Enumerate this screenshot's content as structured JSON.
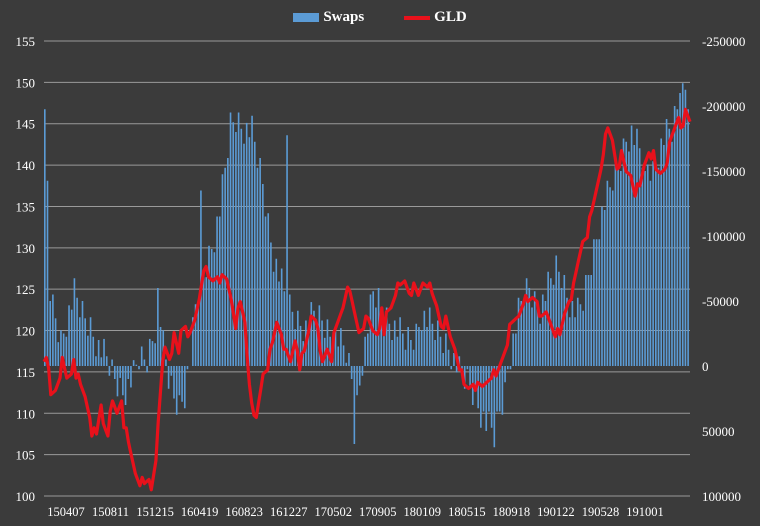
{
  "chart_data": {
    "type": "bar+line",
    "title": "",
    "legend": {
      "position": "top-center"
    },
    "series": [
      {
        "name": "Swaps",
        "type": "bar",
        "axis": "right",
        "color": "#5b9bd5",
        "anchors": [
          [
            0,
            -90000
          ],
          [
            1,
            -70000
          ],
          [
            3,
            -45000
          ],
          [
            6,
            -20000
          ],
          [
            8,
            -35000
          ],
          [
            11,
            -55000
          ],
          [
            14,
            -40000
          ],
          [
            17,
            -30000
          ],
          [
            20,
            -15000
          ],
          [
            23,
            -5000
          ],
          [
            26,
            10000
          ],
          [
            29,
            20000
          ],
          [
            31,
            15000
          ],
          [
            33,
            8000
          ],
          [
            35,
            -5000
          ],
          [
            38,
            -5000
          ],
          [
            41,
            -30000
          ],
          [
            42,
            -55000
          ],
          [
            44,
            -15000
          ],
          [
            46,
            10000
          ],
          [
            48,
            25000
          ],
          [
            50,
            30000
          ],
          [
            52,
            20000
          ],
          [
            54,
            -5000
          ],
          [
            56,
            -45000
          ],
          [
            58,
            -65000
          ],
          [
            61,
            -85000
          ],
          [
            63,
            -100000
          ],
          [
            65,
            -120000
          ],
          [
            67,
            -150000
          ],
          [
            69,
            -185000
          ],
          [
            71,
            -190000
          ],
          [
            73,
            -185000
          ],
          [
            75,
            -182000
          ],
          [
            77,
            -180000
          ],
          [
            79,
            -160000
          ],
          [
            81,
            -140000
          ],
          [
            83,
            -110000
          ],
          [
            85,
            -85000
          ],
          [
            87,
            -70000
          ],
          [
            89,
            -55000
          ],
          [
            91,
            -45000
          ],
          [
            94,
            -35000
          ],
          [
            97,
            -30000
          ],
          [
            100,
            -40000
          ],
          [
            103,
            -35000
          ],
          [
            106,
            -25000
          ],
          [
            109,
            -20000
          ],
          [
            112,
            -10000
          ],
          [
            114,
            10000
          ],
          [
            115,
            50000
          ],
          [
            116,
            30000
          ],
          [
            118,
            -5000
          ],
          [
            120,
            -30000
          ],
          [
            122,
            -55000
          ],
          [
            124,
            -50000
          ],
          [
            126,
            -40000
          ],
          [
            128,
            -35000
          ],
          [
            130,
            -30000
          ],
          [
            132,
            -25000
          ],
          [
            134,
            -20000
          ],
          [
            136,
            -20000
          ],
          [
            138,
            -25000
          ],
          [
            140,
            -40000
          ],
          [
            142,
            -35000
          ],
          [
            144,
            -30000
          ],
          [
            146,
            -25000
          ],
          [
            148,
            -20000
          ],
          [
            150,
            -15000
          ],
          [
            152,
            -5000
          ],
          [
            154,
            5000
          ],
          [
            156,
            10000
          ],
          [
            158,
            15000
          ],
          [
            160,
            25000
          ],
          [
            162,
            35000
          ],
          [
            164,
            45000
          ],
          [
            166,
            50000
          ],
          [
            167,
            55000
          ],
          [
            169,
            35000
          ],
          [
            171,
            20000
          ],
          [
            172,
            0
          ],
          [
            174,
            -20000
          ],
          [
            176,
            -40000
          ],
          [
            178,
            -55000
          ],
          [
            180,
            -60000
          ],
          [
            182,
            -50000
          ],
          [
            184,
            -45000
          ],
          [
            186,
            -55000
          ],
          [
            188,
            -65000
          ],
          [
            190,
            -75000
          ],
          [
            192,
            -70000
          ],
          [
            194,
            -55000
          ],
          [
            196,
            -45000
          ],
          [
            198,
            -40000
          ],
          [
            200,
            -50000
          ],
          [
            202,
            -70000
          ],
          [
            204,
            -90000
          ],
          [
            206,
            -110000
          ],
          [
            208,
            -125000
          ],
          [
            210,
            -135000
          ],
          [
            212,
            -150000
          ],
          [
            214,
            -160000
          ],
          [
            216,
            -175000
          ],
          [
            218,
            -180000
          ],
          [
            220,
            -170000
          ],
          [
            222,
            -160000
          ],
          [
            224,
            -155000
          ],
          [
            226,
            -150000
          ],
          [
            228,
            -165000
          ],
          [
            230,
            -175000
          ],
          [
            232,
            -180000
          ],
          [
            234,
            -190000
          ],
          [
            236,
            -205000
          ],
          [
            238,
            -215000
          ],
          [
            239,
            -210000
          ]
        ],
        "spikes": [
          [
            0,
            -185000
          ],
          [
            1,
            -140000
          ],
          [
            58,
            -125000
          ],
          [
            90,
            -185000
          ],
          [
            223,
            -140000
          ],
          [
            233,
            -180000
          ],
          [
            236,
            -220000
          ]
        ]
      },
      {
        "name": "GLD",
        "type": "line",
        "axis": "left",
        "color": "#e8111b",
        "anchors": [
          [
            0,
            117
          ],
          [
            2,
            115
          ],
          [
            3,
            112
          ],
          [
            5,
            113
          ],
          [
            8,
            116
          ],
          [
            10,
            114
          ],
          [
            12,
            115
          ],
          [
            13,
            117
          ],
          [
            14,
            115
          ],
          [
            16,
            113
          ],
          [
            18,
            112
          ],
          [
            20,
            110
          ],
          [
            21,
            108
          ],
          [
            23,
            107
          ],
          [
            24,
            109
          ],
          [
            25,
            111
          ],
          [
            26,
            109
          ],
          [
            28,
            108
          ],
          [
            30,
            111
          ],
          [
            32,
            110
          ],
          [
            34,
            112
          ],
          [
            35,
            109
          ],
          [
            37,
            106
          ],
          [
            39,
            104
          ],
          [
            40,
            103
          ],
          [
            42,
            102
          ],
          [
            44,
            101
          ],
          [
            46,
            102
          ],
          [
            47,
            101
          ],
          [
            48,
            103
          ],
          [
            49,
            105
          ],
          [
            50,
            108
          ],
          [
            51,
            112
          ],
          [
            52,
            116
          ],
          [
            53,
            118
          ],
          [
            55,
            117
          ],
          [
            57,
            119
          ],
          [
            59,
            117
          ],
          [
            60,
            120
          ],
          [
            62,
            121
          ],
          [
            64,
            119
          ],
          [
            66,
            121
          ],
          [
            68,
            124
          ],
          [
            70,
            128
          ],
          [
            72,
            126
          ],
          [
            74,
            126
          ],
          [
            76,
            127
          ],
          [
            78,
            126
          ],
          [
            80,
            126
          ],
          [
            82,
            124
          ],
          [
            84,
            121
          ],
          [
            86,
            123
          ],
          [
            88,
            121
          ],
          [
            89,
            117
          ],
          [
            90,
            114
          ],
          [
            91,
            112
          ],
          [
            92,
            109
          ],
          [
            93,
            109
          ],
          [
            94,
            111
          ],
          [
            95,
            113
          ],
          [
            96,
            115
          ],
          [
            98,
            116
          ],
          [
            100,
            118
          ],
          [
            102,
            121
          ],
          [
            104,
            120
          ],
          [
            106,
            117
          ],
          [
            108,
            116
          ],
          [
            110,
            119
          ],
          [
            111,
            118
          ],
          [
            112,
            116
          ],
          [
            114,
            117
          ],
          [
            116,
            120
          ],
          [
            117,
            122
          ],
          [
            119,
            122
          ],
          [
            121,
            117
          ],
          [
            122,
            116
          ],
          [
            124,
            118
          ],
          [
            126,
            117
          ],
          [
            127,
            119
          ],
          [
            129,
            121
          ],
          [
            131,
            123
          ],
          [
            133,
            126
          ],
          [
            134,
            124
          ],
          [
            136,
            122
          ],
          [
            138,
            120
          ],
          [
            140,
            121
          ],
          [
            142,
            121
          ],
          [
            144,
            120
          ],
          [
            146,
            120
          ],
          [
            148,
            122
          ],
          [
            149,
            119
          ],
          [
            150,
            122
          ],
          [
            152,
            123
          ],
          [
            154,
            125
          ],
          [
            156,
            125
          ],
          [
            158,
            126
          ],
          [
            160,
            125
          ],
          [
            162,
            125
          ],
          [
            164,
            124
          ],
          [
            166,
            126
          ],
          [
            168,
            126
          ],
          [
            170,
            124
          ],
          [
            172,
            123
          ],
          [
            174,
            121
          ],
          [
            176,
            121
          ],
          [
            178,
            119
          ],
          [
            180,
            118
          ],
          [
            182,
            116
          ],
          [
            184,
            113
          ],
          [
            186,
            113
          ],
          [
            188,
            114
          ],
          [
            190,
            113
          ],
          [
            192,
            113
          ],
          [
            194,
            114
          ],
          [
            196,
            115
          ],
          [
            198,
            114
          ],
          [
            200,
            116
          ],
          [
            202,
            118
          ],
          [
            204,
            120
          ],
          [
            206,
            121
          ],
          [
            208,
            122
          ],
          [
            210,
            124
          ],
          [
            212,
            123
          ],
          [
            214,
            124
          ],
          [
            216,
            124
          ],
          [
            218,
            121
          ],
          [
            220,
            122
          ],
          [
            222,
            121
          ],
          [
            224,
            120
          ],
          [
            226,
            119
          ],
          [
            228,
            122
          ],
          [
            230,
            124
          ],
          [
            232,
            125
          ],
          [
            234,
            128
          ],
          [
            236,
            131
          ],
          [
            238,
            132
          ],
          [
            240,
            134
          ],
          [
            242,
            137
          ],
          [
            244,
            140
          ],
          [
            245,
            142
          ],
          [
            247,
            144
          ],
          [
            249,
            143
          ],
          [
            251,
            140
          ],
          [
            253,
            141
          ],
          [
            255,
            139
          ],
          [
            257,
            139
          ],
          [
            259,
            137
          ],
          [
            261,
            137
          ],
          [
            263,
            140
          ],
          [
            265,
            142
          ],
          [
            267,
            141
          ],
          [
            268,
            139
          ],
          [
            270,
            139
          ],
          [
            272,
            140
          ],
          [
            274,
            142
          ],
          [
            276,
            144
          ],
          [
            278,
            146
          ],
          [
            279,
            145
          ],
          [
            281,
            146
          ],
          [
            283,
            145
          ]
        ]
      }
    ],
    "x_tick_labels": [
      "150407",
      "150811",
      "151215",
      "160419",
      "160823",
      "161227",
      "170502",
      "170905",
      "180109",
      "180515",
      "180918",
      "190122",
      "190528",
      "191001"
    ],
    "left_axis": {
      "min": 100,
      "max": 155,
      "step": 5,
      "tick_labels": [
        "100",
        "105",
        "110",
        "115",
        "120",
        "125",
        "130",
        "135",
        "140",
        "145",
        "150",
        "155"
      ]
    },
    "right_axis": {
      "min": 100000,
      "max": -250000,
      "step": 50000,
      "inverted": true,
      "tick_labels": [
        "100000",
        "50000",
        "0",
        "-50000",
        "-100000",
        "-150000",
        "-200000",
        "-250000"
      ]
    },
    "grid": true
  },
  "colors": {
    "background": "#3b3b3b",
    "grid": "#9a9a9a",
    "swaps": "#5b9bd5",
    "gld": "#e8111b"
  }
}
